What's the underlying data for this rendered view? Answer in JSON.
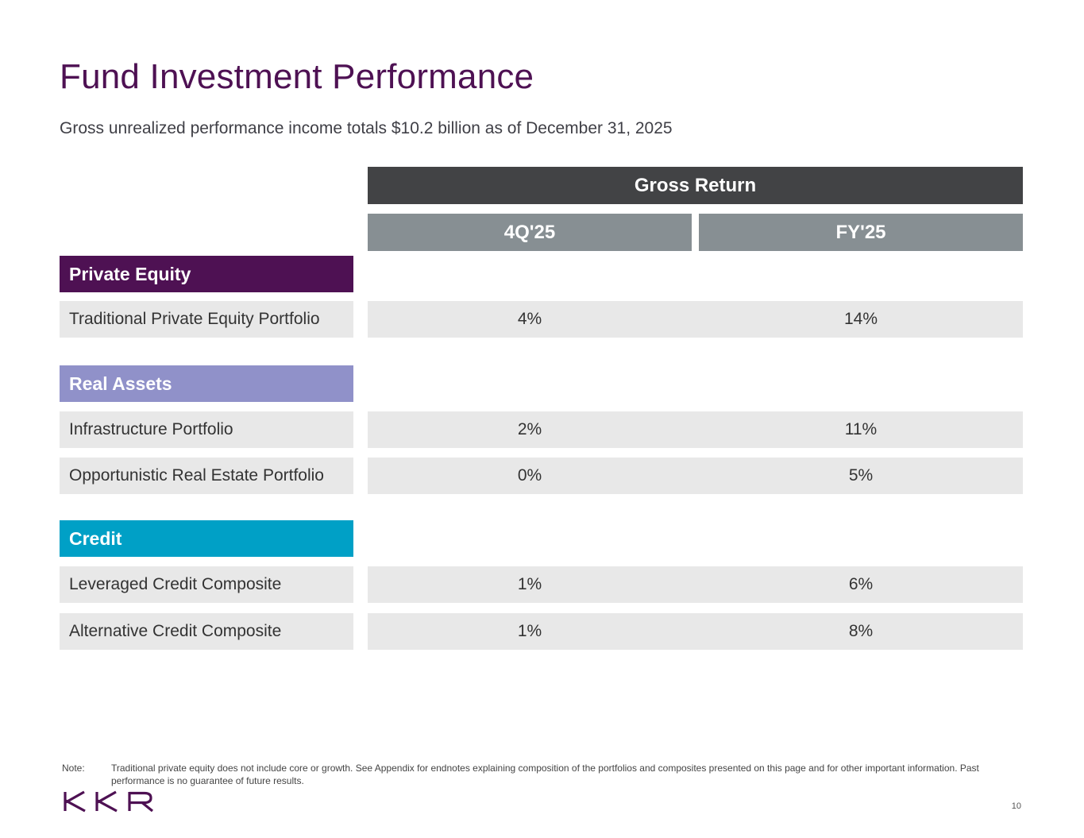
{
  "page": {
    "title": "Fund Investment Performance",
    "subtitle": "Gross unrealized performance income totals $10.2 billion as of December 31, 2025",
    "page_number": "10"
  },
  "table": {
    "group_header": "Gross Return",
    "columns": [
      "4Q'25",
      "FY'25"
    ],
    "sections": [
      {
        "label": "Private Equity",
        "color": "#4e1153",
        "rows": [
          {
            "label": "Traditional Private Equity Portfolio",
            "q4": "4%",
            "fy": "14%"
          }
        ]
      },
      {
        "label": "Real Assets",
        "color": "#9091c9",
        "rows": [
          {
            "label": "Infrastructure Portfolio",
            "q4": "2%",
            "fy": "11%"
          },
          {
            "label": "Opportunistic Real Estate Portfolio",
            "q4": "0%",
            "fy": "5%"
          }
        ]
      },
      {
        "label": "Credit",
        "color": "#00a0c6",
        "rows": [
          {
            "label": "Leveraged Credit Composite",
            "q4": "1%",
            "fy": "6%"
          },
          {
            "label": "Alternative Credit Composite",
            "q4": "1%",
            "fy": "8%"
          }
        ]
      }
    ]
  },
  "footer": {
    "note_label": "Note:",
    "note_text": "Traditional private equity does not include core or growth. See Appendix for endnotes explaining composition of the portfolios and composites presented on this page and for other important information. Past performance is no guarantee of future results.",
    "logo_text": "KKR"
  },
  "colors": {
    "title": "#4e1153",
    "header_dark": "#424345",
    "header_gray": "#878f93",
    "row_fill": "#e8e8e8"
  }
}
